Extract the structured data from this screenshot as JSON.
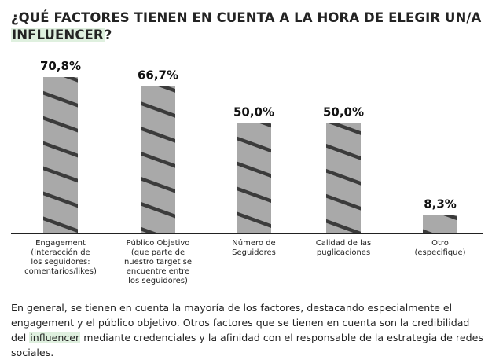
{
  "title": {
    "line1": "¿QUÉ FACTORES TIENEN EN CUENTA A LA HORA DE ELEGIR UN/A",
    "line2_highlight": "INFLUENCER",
    "line2_rest": "?"
  },
  "colors": {
    "bar_fill": "#a9a9a9",
    "stripe": "#3b3b3b",
    "axis": "#222222",
    "highlight": "#dff0df"
  },
  "chart_data": {
    "type": "bar",
    "title": "¿QUÉ FACTORES TIENEN EN CUENTA A LA HORA DE ELEGIR UN/A INFLUENCER?",
    "xlabel": "",
    "ylabel": "",
    "ylim": [
      0,
      70.8
    ],
    "grid": false,
    "legend": "none",
    "categories": [
      [
        "Engagement",
        "(Interacción de",
        "los seguidores:",
        "comentarios/likes)"
      ],
      [
        "Público Objetivo",
        "(que parte de",
        "nuestro target se",
        "encuentre entre",
        "los seguidores)"
      ],
      [
        "Número de",
        "Seguidores"
      ],
      [
        "Calidad de las",
        "puglicaciones"
      ],
      [
        "Otro",
        "(especifique)"
      ]
    ],
    "values": [
      70.8,
      66.7,
      50.0,
      50.0,
      8.3
    ],
    "value_labels": [
      "70,8%",
      "66,7%",
      "50,0%",
      "50,0%",
      "8,3%"
    ]
  },
  "description": {
    "part1": "En general, se tienen en cuenta la mayoría de los factores, destacando especialmente el engagement y el público objetivo. Otros factores que se tienen en cuenta son la credibilidad del ",
    "highlight": "influencer",
    "part2": " mediante credenciales y la afinidad con el responsable de la estrategia de redes sociales."
  }
}
